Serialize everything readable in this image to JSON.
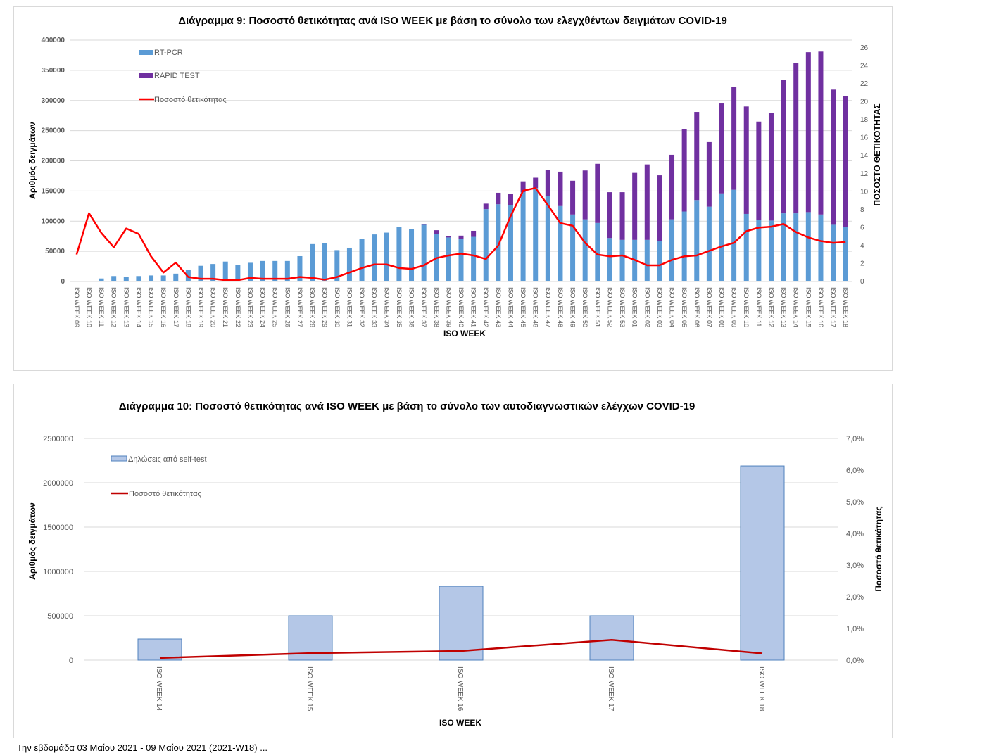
{
  "colors": {
    "rtpcr": "#5b9bd5",
    "rapid": "#7030a0",
    "positivity1": "#ff0000",
    "selftest_fill": "#b4c7e7",
    "selftest_stroke": "#4f81bd",
    "positivity2": "#c00000",
    "grid": "#d9d9d9"
  },
  "chart_data": [
    {
      "type": "bar",
      "stacked": true,
      "title": "Διάγραμμα 9: Ποσοστό  θετικότητας ανά ISO WEEK με βάση το σύνολο των ελεγχθέντων δειγμάτων COVID-19",
      "xlabel": "ISO WEEK",
      "ylabel": "Αριθμός δειγμάτων",
      "y2label": "ΠΟΣΟΣΤΟ ΘΕΤΙΚΟΤΗΤΑΣ",
      "ylim": [
        0,
        400000
      ],
      "yticks": [
        "0",
        "50000",
        "100000",
        "150000",
        "200000",
        "250000",
        "300000",
        "350000",
        "400000"
      ],
      "y2lim": [
        0,
        26
      ],
      "y2ticks": [
        "0",
        "2",
        "4",
        "6",
        "8",
        "10",
        "12",
        "14",
        "16",
        "18",
        "20",
        "22",
        "24",
        "26"
      ],
      "grid": true,
      "legend_position": "top-left",
      "categories": [
        "ISO WEEK 09",
        "ISO WEEK 10",
        "ISO WEEK 11",
        "ISO WEEK 12",
        "ISO WEEK 13",
        "ISO WEEK 14",
        "ISO WEEK 15",
        "ISO WEEK 16",
        "ISO WEEK 17",
        "ISO WEEK 18",
        "ISO WEEK 19",
        "ISO WEEK 20",
        "ISO WEEK 21",
        "ISO WEEK 22",
        "ISO WEEK 23",
        "ISO WEEK 24",
        "ISO WEEK 25",
        "ISO WEEK 26",
        "ISO WEEK 27",
        "ISO WEEK 28",
        "ISO WEEK 29",
        "ISO WEEK 30",
        "ISO WEEK 31",
        "ISO WEEK 32",
        "ISO WEEK 33",
        "ISO WEEK 34",
        "ISO WEEK 35",
        "ISO WEEK 36",
        "ISO WEEK 37",
        "ISO WEEK 38",
        "ISO WEEK 39",
        "ISO WEEK 40",
        "ISO WEEK 41",
        "ISO WEEK 42",
        "ISO WEEK 43",
        "ISO WEEK 44",
        "ISO WEEK 45",
        "ISO WEEK 46",
        "ISO WEEK 47",
        "ISO WEEK 48",
        "ISO WEEK 49",
        "ISO WEEK 50",
        "ISO WEEK 51",
        "ISO WEEK 52",
        "ISO WEEK 53",
        "ISO WEEK 01",
        "ISO WEEK 02",
        "ISO WEEK 03",
        "ISO WEEK 04",
        "ISO WEEK 05",
        "ISO WEEK 06",
        "ISO WEEK 07",
        "ISO WEEK 08",
        "ISO WEEK 09",
        "ISO WEEK 10",
        "ISO WEEK 11",
        "ISO WEEK 12",
        "ISO WEEK 13",
        "ISO WEEK 14",
        "ISO WEEK 15",
        "ISO WEEK 16",
        "ISO WEEK 17",
        "ISO WEEK 18"
      ],
      "series": [
        {
          "name": "RT-PCR",
          "kind": "bar",
          "axis": "left",
          "values": [
            0,
            0,
            5000,
            9000,
            8000,
            9000,
            10000,
            10000,
            13000,
            19000,
            26000,
            29000,
            33000,
            27000,
            31000,
            34000,
            34000,
            34000,
            42000,
            62000,
            64000,
            52000,
            56000,
            70000,
            78000,
            81000,
            90000,
            87000,
            94000,
            79000,
            73000,
            70000,
            74000,
            120000,
            128000,
            126000,
            148000,
            155000,
            142000,
            125000,
            111000,
            103000,
            97000,
            72000,
            69000,
            69000,
            69000,
            67000,
            103000,
            116000,
            135000,
            124000,
            146000,
            152000,
            112000,
            102000,
            101000,
            113000,
            113000,
            115000,
            111000,
            94000,
            90000
          ]
        },
        {
          "name": "RAPID TEST",
          "kind": "bar",
          "axis": "left",
          "values": [
            0,
            0,
            0,
            0,
            0,
            0,
            0,
            0,
            0,
            0,
            0,
            0,
            0,
            0,
            0,
            0,
            0,
            0,
            0,
            0,
            0,
            0,
            0,
            0,
            0,
            0,
            0,
            0,
            1000,
            6000,
            2000,
            6000,
            10000,
            9000,
            19000,
            19000,
            18000,
            17000,
            43000,
            57000,
            56000,
            81000,
            98000,
            76000,
            79000,
            111000,
            125000,
            109000,
            107000,
            136000,
            146000,
            107000,
            149000,
            171000,
            178000,
            163000,
            178000,
            221000,
            249000,
            265000,
            270000,
            224000,
            217000
          ]
        },
        {
          "name": "Ποσοστό θετικότητας",
          "kind": "line",
          "axis": "right",
          "values": [
            3.0,
            7.6,
            5.4,
            3.8,
            5.9,
            5.3,
            2.8,
            1.0,
            2.1,
            0.5,
            0.3,
            0.3,
            0.15,
            0.15,
            0.4,
            0.3,
            0.3,
            0.3,
            0.5,
            0.4,
            0.2,
            0.5,
            1.0,
            1.5,
            1.9,
            1.9,
            1.5,
            1.4,
            1.8,
            2.6,
            2.9,
            3.1,
            2.9,
            2.5,
            4.0,
            7.3,
            10.1,
            10.4,
            8.5,
            6.5,
            6.2,
            4.3,
            3.0,
            2.8,
            2.9,
            2.4,
            1.8,
            1.8,
            2.4,
            2.8,
            2.9,
            3.4,
            3.9,
            4.3,
            5.6,
            6.0,
            6.1,
            6.4,
            5.5,
            4.9,
            4.5,
            4.3,
            4.4
          ]
        }
      ]
    },
    {
      "type": "bar",
      "title": "Διάγραμμα 10: Ποσοστό  θετικότητας ανά ISO WEEK  με βάση το σύνολο των αυτοδιαγνωστικών  ελέγχων COVID-19",
      "xlabel": "ISO WEEK",
      "ylabel": "Αριθμός δειγμάτων",
      "y2label": "Ποσοστό θετικότητας",
      "ylim": [
        0,
        2500000
      ],
      "yticks": [
        "0",
        "500000",
        "1000000",
        "1500000",
        "2000000",
        "2500000"
      ],
      "y2lim": [
        0,
        7.0
      ],
      "y2ticks": [
        "0,0%",
        "1,0%",
        "2,0%",
        "3,0%",
        "4,0%",
        "5,0%",
        "6,0%",
        "7,0%"
      ],
      "grid": true,
      "legend_position": "top-left",
      "categories": [
        "ISO WEEK 14",
        "ISO WEEK 15",
        "ISO WEEK 16",
        "ISO WEEK 17",
        "ISO WEEK 18"
      ],
      "series": [
        {
          "name": "Δηλώσεις από self-test",
          "kind": "bar",
          "axis": "left",
          "values": [
            238000,
            500000,
            833000,
            500000,
            2190000
          ]
        },
        {
          "name": "Ποσοστό θετικότητας",
          "kind": "line",
          "axis": "right",
          "values": [
            0.07,
            0.22,
            0.29,
            0.64,
            0.21
          ]
        }
      ]
    }
  ],
  "footer_text": "Την εβδομάδα 03 Μαΐου 2021 - 09 Μαΐου 2021 (2021-W18) ..."
}
